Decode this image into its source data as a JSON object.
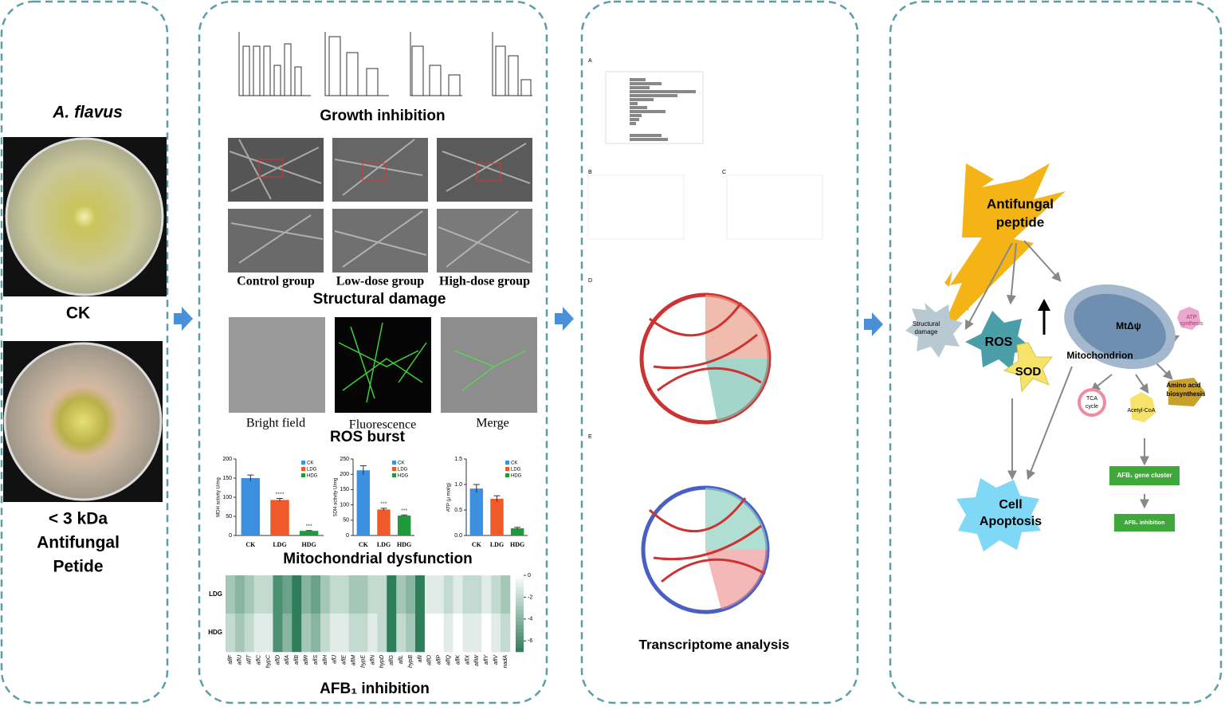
{
  "organism": {
    "title": "A. flavus",
    "control_label": "CK",
    "treatment_label": [
      "< 3 kDa",
      "Antifungal",
      "Petide"
    ]
  },
  "phenotypes": {
    "growth_title": "Growth inhibition",
    "structural_title": "Structural damage",
    "sem_groups": [
      "Control group",
      "Low-dose group",
      "High-dose group"
    ],
    "ros_images": [
      "Bright field",
      "Fluorescence",
      "Merge"
    ],
    "ros_title": "ROS burst",
    "mito_title": "Mitochondrial dysfunction",
    "afb_title": "AFB₁ inhibition"
  },
  "transcriptome": {
    "panel_letters": [
      "A",
      "B",
      "C",
      "D",
      "E"
    ],
    "title": "Transcriptome analysis"
  },
  "mechanism": {
    "peptide": [
      "Antifungal",
      "peptide"
    ],
    "structural": [
      "Structural",
      "damage"
    ],
    "ros": "ROS",
    "sod": "SOD",
    "mtpsi": "MtΔψ",
    "mitochondrion": "Mitochondrion",
    "atp": [
      "ATP",
      "synthesis"
    ],
    "amino": [
      "Amino acid",
      "biosynthesis"
    ],
    "tca": [
      "TCA",
      "cycle"
    ],
    "acetyl": "Acetyl-CoA",
    "cluster": "AFB₁ gene cluster",
    "inhibition": "AFB₁ inhibition",
    "apoptosis": [
      "Cell",
      "Apoptosis"
    ]
  },
  "chart_data": [
    {
      "type": "bar",
      "categories": [
        "CK",
        "LDG",
        "HDG"
      ],
      "values": [
        150,
        93,
        12
      ],
      "errors": [
        8,
        4,
        1
      ],
      "annotations": [
        null,
        "****",
        "***"
      ],
      "colors": [
        "#3d8fe0",
        "#f0592a",
        "#1e9a3c"
      ],
      "legend": [
        "CK",
        "LDG",
        "HDG"
      ],
      "ylabel": "MDH activity U/mg",
      "ylim": [
        0,
        200
      ],
      "yticks": [
        0,
        50,
        100,
        150,
        200
      ]
    },
    {
      "type": "bar",
      "categories": [
        "CK",
        "LDG",
        "HDG"
      ],
      "values": [
        213,
        85,
        65
      ],
      "errors": [
        15,
        4,
        2
      ],
      "annotations": [
        null,
        "***",
        "***"
      ],
      "colors": [
        "#3d8fe0",
        "#f0592a",
        "#1e9a3c"
      ],
      "legend": [
        "CK",
        "LDG",
        "HDG"
      ],
      "ylabel": "SDH activity U/mg",
      "ylim": [
        0,
        250
      ],
      "yticks": [
        0,
        50,
        100,
        150,
        200,
        250
      ]
    },
    {
      "type": "bar",
      "categories": [
        "CK",
        "LDG",
        "HDG"
      ],
      "values": [
        0.92,
        0.72,
        0.14
      ],
      "errors": [
        0.08,
        0.06,
        0.02
      ],
      "annotations": [
        null,
        null,
        null
      ],
      "colors": [
        "#3d8fe0",
        "#f0592a",
        "#1e9a3c"
      ],
      "legend": [
        "CK",
        "LDG",
        "HDG"
      ],
      "ylabel": "ATP (μ mol/g)",
      "ylim": [
        0,
        1.5
      ],
      "yticks": [
        {
          "value": 0,
          "label": "0.0"
        },
        0.5,
        {
          "value": 1,
          "label": "1.0"
        },
        1.5
      ]
    },
    {
      "type": "heatmap",
      "rows": [
        "LDG",
        "HDG"
      ],
      "columns": [
        "aflF",
        "aflU",
        "aflT",
        "aflC",
        "hypC",
        "aflD",
        "aflA",
        "aflB",
        "aflR",
        "aflS",
        "aflH",
        "aflJ",
        "aflE",
        "aflM",
        "hypE",
        "aflN",
        "hypD",
        "aflG",
        "aflL",
        "hypB",
        "aflI",
        "aflO",
        "aflP",
        "aflQ",
        "aflK",
        "aflX",
        "aflW",
        "aflY",
        "aflV",
        "nadA"
      ],
      "values": [
        [
          -3,
          -4,
          -3,
          -2,
          -2,
          -6,
          -5,
          -7,
          -4,
          -5,
          -3,
          -2,
          -2,
          -3,
          -3,
          -2,
          -2,
          -7,
          -3,
          -4,
          -7,
          -1,
          -1,
          -2,
          -1,
          -2,
          -2,
          -1,
          -2,
          -3
        ],
        [
          -2,
          -3,
          -2,
          -1,
          -1,
          -6,
          -4,
          -7,
          -3,
          -4,
          -2,
          -1,
          -1,
          -2,
          -2,
          -1,
          -2,
          -7,
          -2,
          -3,
          -7,
          0,
          0,
          -1,
          0,
          -1,
          -1,
          0,
          -1,
          -2
        ]
      ],
      "zlim": [
        -7,
        0
      ],
      "colors": [
        "#2e7d5b",
        "#ffffff"
      ],
      "colorbar_ticks": [
        0,
        -2,
        -4,
        -6
      ]
    }
  ]
}
